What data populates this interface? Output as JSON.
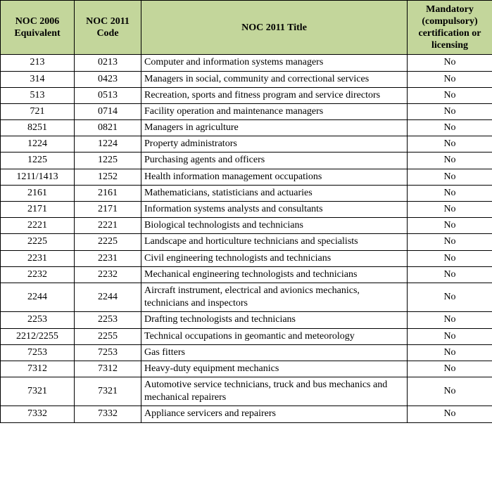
{
  "colors": {
    "header_bg": "#c3d69b",
    "border": "#000000",
    "text": "#000000",
    "page_bg": "#ffffff"
  },
  "table": {
    "headers": [
      {
        "label": "NOC 2006 Equivalent"
      },
      {
        "label": "NOC 2011 Code"
      },
      {
        "label": "NOC 2011 Title"
      },
      {
        "label": "Mandatory (compulsory) certification or licensing"
      }
    ],
    "rows": [
      {
        "noc2006_equivalent": "213",
        "noc2011_code": "0213",
        "noc2011_title": "Computer and information systems managers",
        "mandatory": "No"
      },
      {
        "noc2006_equivalent": "314",
        "noc2011_code": "0423",
        "noc2011_title": "Managers in social, community and correctional services",
        "mandatory": "No"
      },
      {
        "noc2006_equivalent": "513",
        "noc2011_code": "0513",
        "noc2011_title": "Recreation, sports and fitness program and service directors",
        "mandatory": "No"
      },
      {
        "noc2006_equivalent": "721",
        "noc2011_code": "0714",
        "noc2011_title": "Facility operation and maintenance managers",
        "mandatory": "No"
      },
      {
        "noc2006_equivalent": "8251",
        "noc2011_code": "0821",
        "noc2011_title": "Managers in agriculture",
        "mandatory": "No"
      },
      {
        "noc2006_equivalent": "1224",
        "noc2011_code": "1224",
        "noc2011_title": "Property administrators",
        "mandatory": "No"
      },
      {
        "noc2006_equivalent": "1225",
        "noc2011_code": "1225",
        "noc2011_title": "Purchasing agents and officers",
        "mandatory": "No"
      },
      {
        "noc2006_equivalent": "1211/1413",
        "noc2011_code": "1252",
        "noc2011_title": "Health information management occupations",
        "mandatory": "No"
      },
      {
        "noc2006_equivalent": "2161",
        "noc2011_code": "2161",
        "noc2011_title": "Mathematicians, statisticians and actuaries",
        "mandatory": "No"
      },
      {
        "noc2006_equivalent": "2171",
        "noc2011_code": "2171",
        "noc2011_title": "Information systems analysts and consultants",
        "mandatory": "No"
      },
      {
        "noc2006_equivalent": "2221",
        "noc2011_code": "2221",
        "noc2011_title": "Biological technologists and technicians",
        "mandatory": "No"
      },
      {
        "noc2006_equivalent": "2225",
        "noc2011_code": "2225",
        "noc2011_title": "Landscape and horticulture technicians and specialists",
        "mandatory": "No"
      },
      {
        "noc2006_equivalent": "2231",
        "noc2011_code": "2231",
        "noc2011_title": "Civil engineering technologists and technicians",
        "mandatory": "No"
      },
      {
        "noc2006_equivalent": "2232",
        "noc2011_code": "2232",
        "noc2011_title": "Mechanical engineering technologists and technicians",
        "mandatory": "No"
      },
      {
        "noc2006_equivalent": "2244",
        "noc2011_code": "2244",
        "noc2011_title": "Aircraft instrument, electrical and avionics mechanics, technicians and inspectors",
        "mandatory": "No"
      },
      {
        "noc2006_equivalent": "2253",
        "noc2011_code": "2253",
        "noc2011_title": "Drafting technologists and technicians",
        "mandatory": "No"
      },
      {
        "noc2006_equivalent": "2212/2255",
        "noc2011_code": "2255",
        "noc2011_title": "Technical occupations in geomantic and meteorology",
        "mandatory": "No"
      },
      {
        "noc2006_equivalent": "7253",
        "noc2011_code": "7253",
        "noc2011_title": "Gas fitters",
        "mandatory": "No"
      },
      {
        "noc2006_equivalent": "7312",
        "noc2011_code": "7312",
        "noc2011_title": "Heavy-duty equipment mechanics",
        "mandatory": "No"
      },
      {
        "noc2006_equivalent": "7321",
        "noc2011_code": "7321",
        "noc2011_title": "Automotive service technicians, truck and bus mechanics and mechanical repairers",
        "mandatory": "No"
      },
      {
        "noc2006_equivalent": "7332",
        "noc2011_code": "7332",
        "noc2011_title": "Appliance servicers and repairers",
        "mandatory": "No"
      }
    ]
  }
}
